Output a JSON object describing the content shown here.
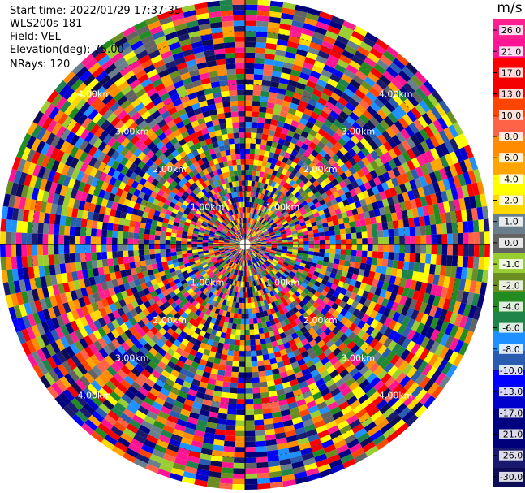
{
  "header": {
    "start_time": "Start time: 2022/01/29 17:37:35",
    "instrument": "WLS200s-181",
    "field": "Field: VEL",
    "elevation": "Elevation(deg): 75.00",
    "nrays": "NRays: 120"
  },
  "colors": {
    "cmap": [
      "#ff2090",
      "#ff1493",
      "#ff0000",
      "#f40000",
      "#ff4500",
      "#ff6347",
      "#ff8c00",
      "#ffa500",
      "#ffff00",
      "#ffd700",
      "#6a7f8c",
      "#636363",
      "#9acd32",
      "#6b8e23",
      "#228b22",
      "#1e8449",
      "#1e90ff",
      "#2a5db0",
      "#0000ff",
      "#0000cd",
      "#000080",
      "#00007a",
      "#191970",
      "#0d0d55"
    ]
  },
  "chart_data": {
    "type": "heatmap",
    "title": "",
    "field": "VEL",
    "n_rays": 120,
    "elevation_deg": 75.0,
    "range_km_max": 4.6,
    "range_ring_labels": [
      "1.00km",
      "2.00km",
      "3.00km",
      "4.00km"
    ],
    "colorbar": {
      "unit": "m/s",
      "tick_labels": [
        "26.0",
        "21.0",
        "17.0",
        "13.0",
        "10.0",
        "8.0",
        "6.0",
        "4.0",
        "2.0",
        "1.0",
        "0.0",
        "-1.0",
        "-2.0",
        "-4.0",
        "-6.0",
        "-8.0",
        "-10.0",
        "-13.0",
        "-17.0",
        "-21.0",
        "-26.0",
        "-30.0"
      ],
      "range": [
        -30.0,
        30.0
      ]
    }
  }
}
